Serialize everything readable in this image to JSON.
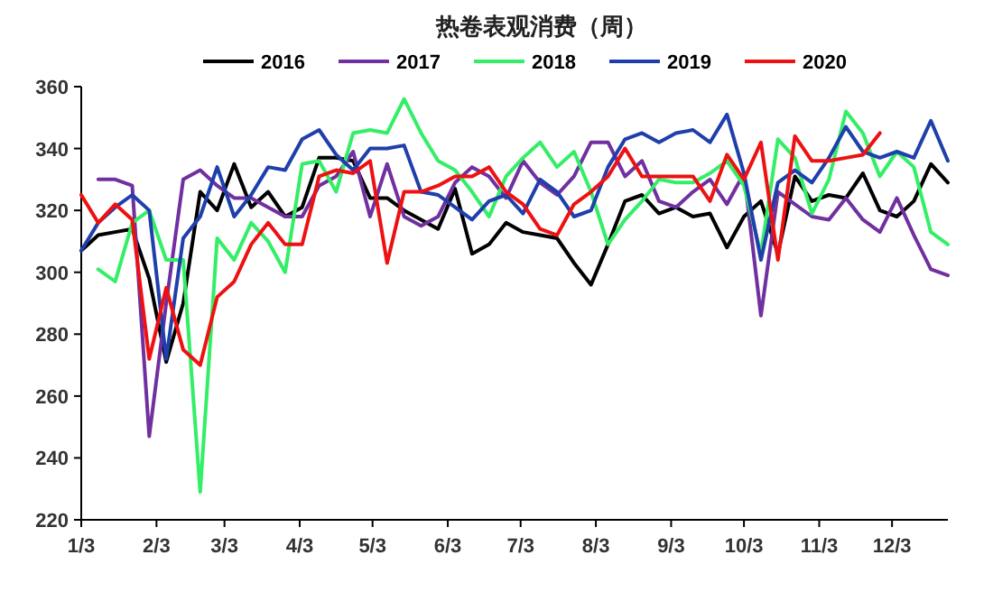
{
  "chart_data": {
    "type": "line",
    "title": "热卷表观消费（周）",
    "legend": "top",
    "grid": false,
    "marker": "none",
    "line_style": "solid",
    "x": [
      "--01-03",
      "--01-10",
      "--01-17",
      "--01-24",
      "--01-31",
      "--02-07",
      "--02-14",
      "--02-21",
      "--02-28",
      "--03-07",
      "--03-14",
      "--03-21",
      "--03-28",
      "--04-04",
      "--04-11",
      "--04-18",
      "--04-25",
      "--05-02",
      "--05-09",
      "--05-16",
      "--05-23",
      "--05-30",
      "--06-06",
      "--06-13",
      "--06-20",
      "--06-27",
      "--07-04",
      "--07-11",
      "--07-18",
      "--07-25",
      "--08-01",
      "--08-08",
      "--08-15",
      "--08-22",
      "--08-29",
      "--09-05",
      "--09-12",
      "--09-19",
      "--09-26",
      "--10-03",
      "--10-10",
      "--10-17",
      "--10-24",
      "--10-31",
      "--11-07",
      "--11-14",
      "--11-21",
      "--11-28",
      "--12-05",
      "--12-12",
      "--12-19",
      "--12-26"
    ],
    "xlim": [
      "--01-03",
      "--12-26"
    ],
    "xticks": [
      {
        "value": "--01-03",
        "label": "1/3"
      },
      {
        "value": "--02-03",
        "label": "2/3"
      },
      {
        "value": "--03-03",
        "label": "3/3"
      },
      {
        "value": "--04-03",
        "label": "4/3"
      },
      {
        "value": "--05-03",
        "label": "5/3"
      },
      {
        "value": "--06-03",
        "label": "6/3"
      },
      {
        "value": "--07-03",
        "label": "7/3"
      },
      {
        "value": "--08-03",
        "label": "8/3"
      },
      {
        "value": "--09-03",
        "label": "9/3"
      },
      {
        "value": "--10-03",
        "label": "10/3"
      },
      {
        "value": "--11-03",
        "label": "11/3"
      },
      {
        "value": "--12-03",
        "label": "12/3"
      }
    ],
    "ylim": [
      220,
      360
    ],
    "yticks": [
      220,
      240,
      260,
      280,
      300,
      320,
      340,
      360
    ],
    "series": [
      {
        "name": "2016",
        "color": "#000000",
        "values": [
          307,
          312,
          313,
          314,
          298,
          271,
          290,
          326,
          320,
          335,
          321,
          326,
          318,
          321,
          337,
          337,
          336,
          324,
          324,
          320,
          317,
          314,
          327,
          306,
          309,
          316,
          313,
          312,
          311,
          303,
          296,
          309,
          323,
          325,
          319,
          321,
          318,
          319,
          308,
          318,
          323,
          306,
          331,
          323,
          325,
          324,
          332,
          320,
          318,
          323,
          335,
          329
        ]
      },
      {
        "name": "2017",
        "color": "#7030a0",
        "values": [
          null,
          330,
          330,
          328,
          247,
          290,
          330,
          333,
          328,
          324,
          324,
          321,
          318,
          318,
          328,
          331,
          339,
          318,
          335,
          318,
          315,
          318,
          329,
          334,
          331,
          324,
          336,
          329,
          325,
          331,
          342,
          342,
          331,
          336,
          323,
          321,
          326,
          330,
          322,
          332,
          286,
          326,
          322,
          318,
          317,
          324,
          317,
          313,
          324,
          312,
          301,
          299
        ]
      },
      {
        "name": "2018",
        "color": "#33ee66",
        "values": [
          null,
          301,
          297,
          316,
          320,
          304,
          304,
          229,
          311,
          304,
          316,
          310,
          300,
          335,
          336,
          326,
          345,
          346,
          345,
          356,
          345,
          336,
          333,
          326,
          318,
          331,
          337,
          342,
          334,
          339,
          326,
          309,
          317,
          323,
          330,
          329,
          329,
          332,
          336,
          328,
          306,
          343,
          337,
          319,
          330,
          352,
          345,
          331,
          339,
          334,
          313,
          309
        ]
      },
      {
        "name": "2019",
        "color": "#1f3faa",
        "values": [
          307,
          316,
          321,
          325,
          320,
          272,
          311,
          318,
          334,
          318,
          325,
          334,
          333,
          343,
          346,
          338,
          333,
          340,
          340,
          341,
          326,
          325,
          321,
          317,
          323,
          325,
          319,
          330,
          326,
          318,
          320,
          334,
          343,
          345,
          342,
          345,
          346,
          342,
          351,
          332,
          304,
          329,
          333,
          329,
          337,
          347,
          339,
          337,
          339,
          337,
          349,
          336
        ]
      },
      {
        "name": "2020",
        "color": "#ee1111",
        "x": [
          "--01-03",
          "--01-10",
          "--01-17",
          "--01-24",
          "--01-31",
          "--02-07",
          "--02-14",
          "--02-21",
          "--02-28",
          "--03-07",
          "--03-14",
          "--03-21",
          "--03-28",
          "--04-04",
          "--04-11",
          "--04-18",
          "--04-25",
          "--05-02",
          "--05-09",
          "--05-16",
          "--05-23",
          "--05-30",
          "--06-06",
          "--06-13",
          "--06-20",
          "--06-27",
          "--07-04",
          "--07-11",
          "--07-18",
          "--07-25",
          "--08-01",
          "--08-08",
          "--08-15",
          "--08-22",
          "--08-29",
          "--09-05",
          "--09-12",
          "--09-19",
          "--09-26",
          "--10-03",
          "--10-10",
          "--10-17",
          "--10-24",
          "--10-31",
          "--11-07",
          "--11-14",
          "--11-21",
          "--11-28"
        ],
        "values": [
          325,
          316,
          322,
          317,
          272,
          295,
          275,
          270,
          292,
          297,
          309,
          316,
          309,
          309,
          331,
          333,
          332,
          336,
          303,
          326,
          326,
          328,
          331,
          331,
          334,
          326,
          322,
          314,
          312,
          322,
          326,
          331,
          340,
          331,
          331,
          331,
          331,
          323,
          338,
          330,
          342,
          304,
          344,
          336,
          336,
          337,
          338,
          345
        ]
      }
    ]
  }
}
